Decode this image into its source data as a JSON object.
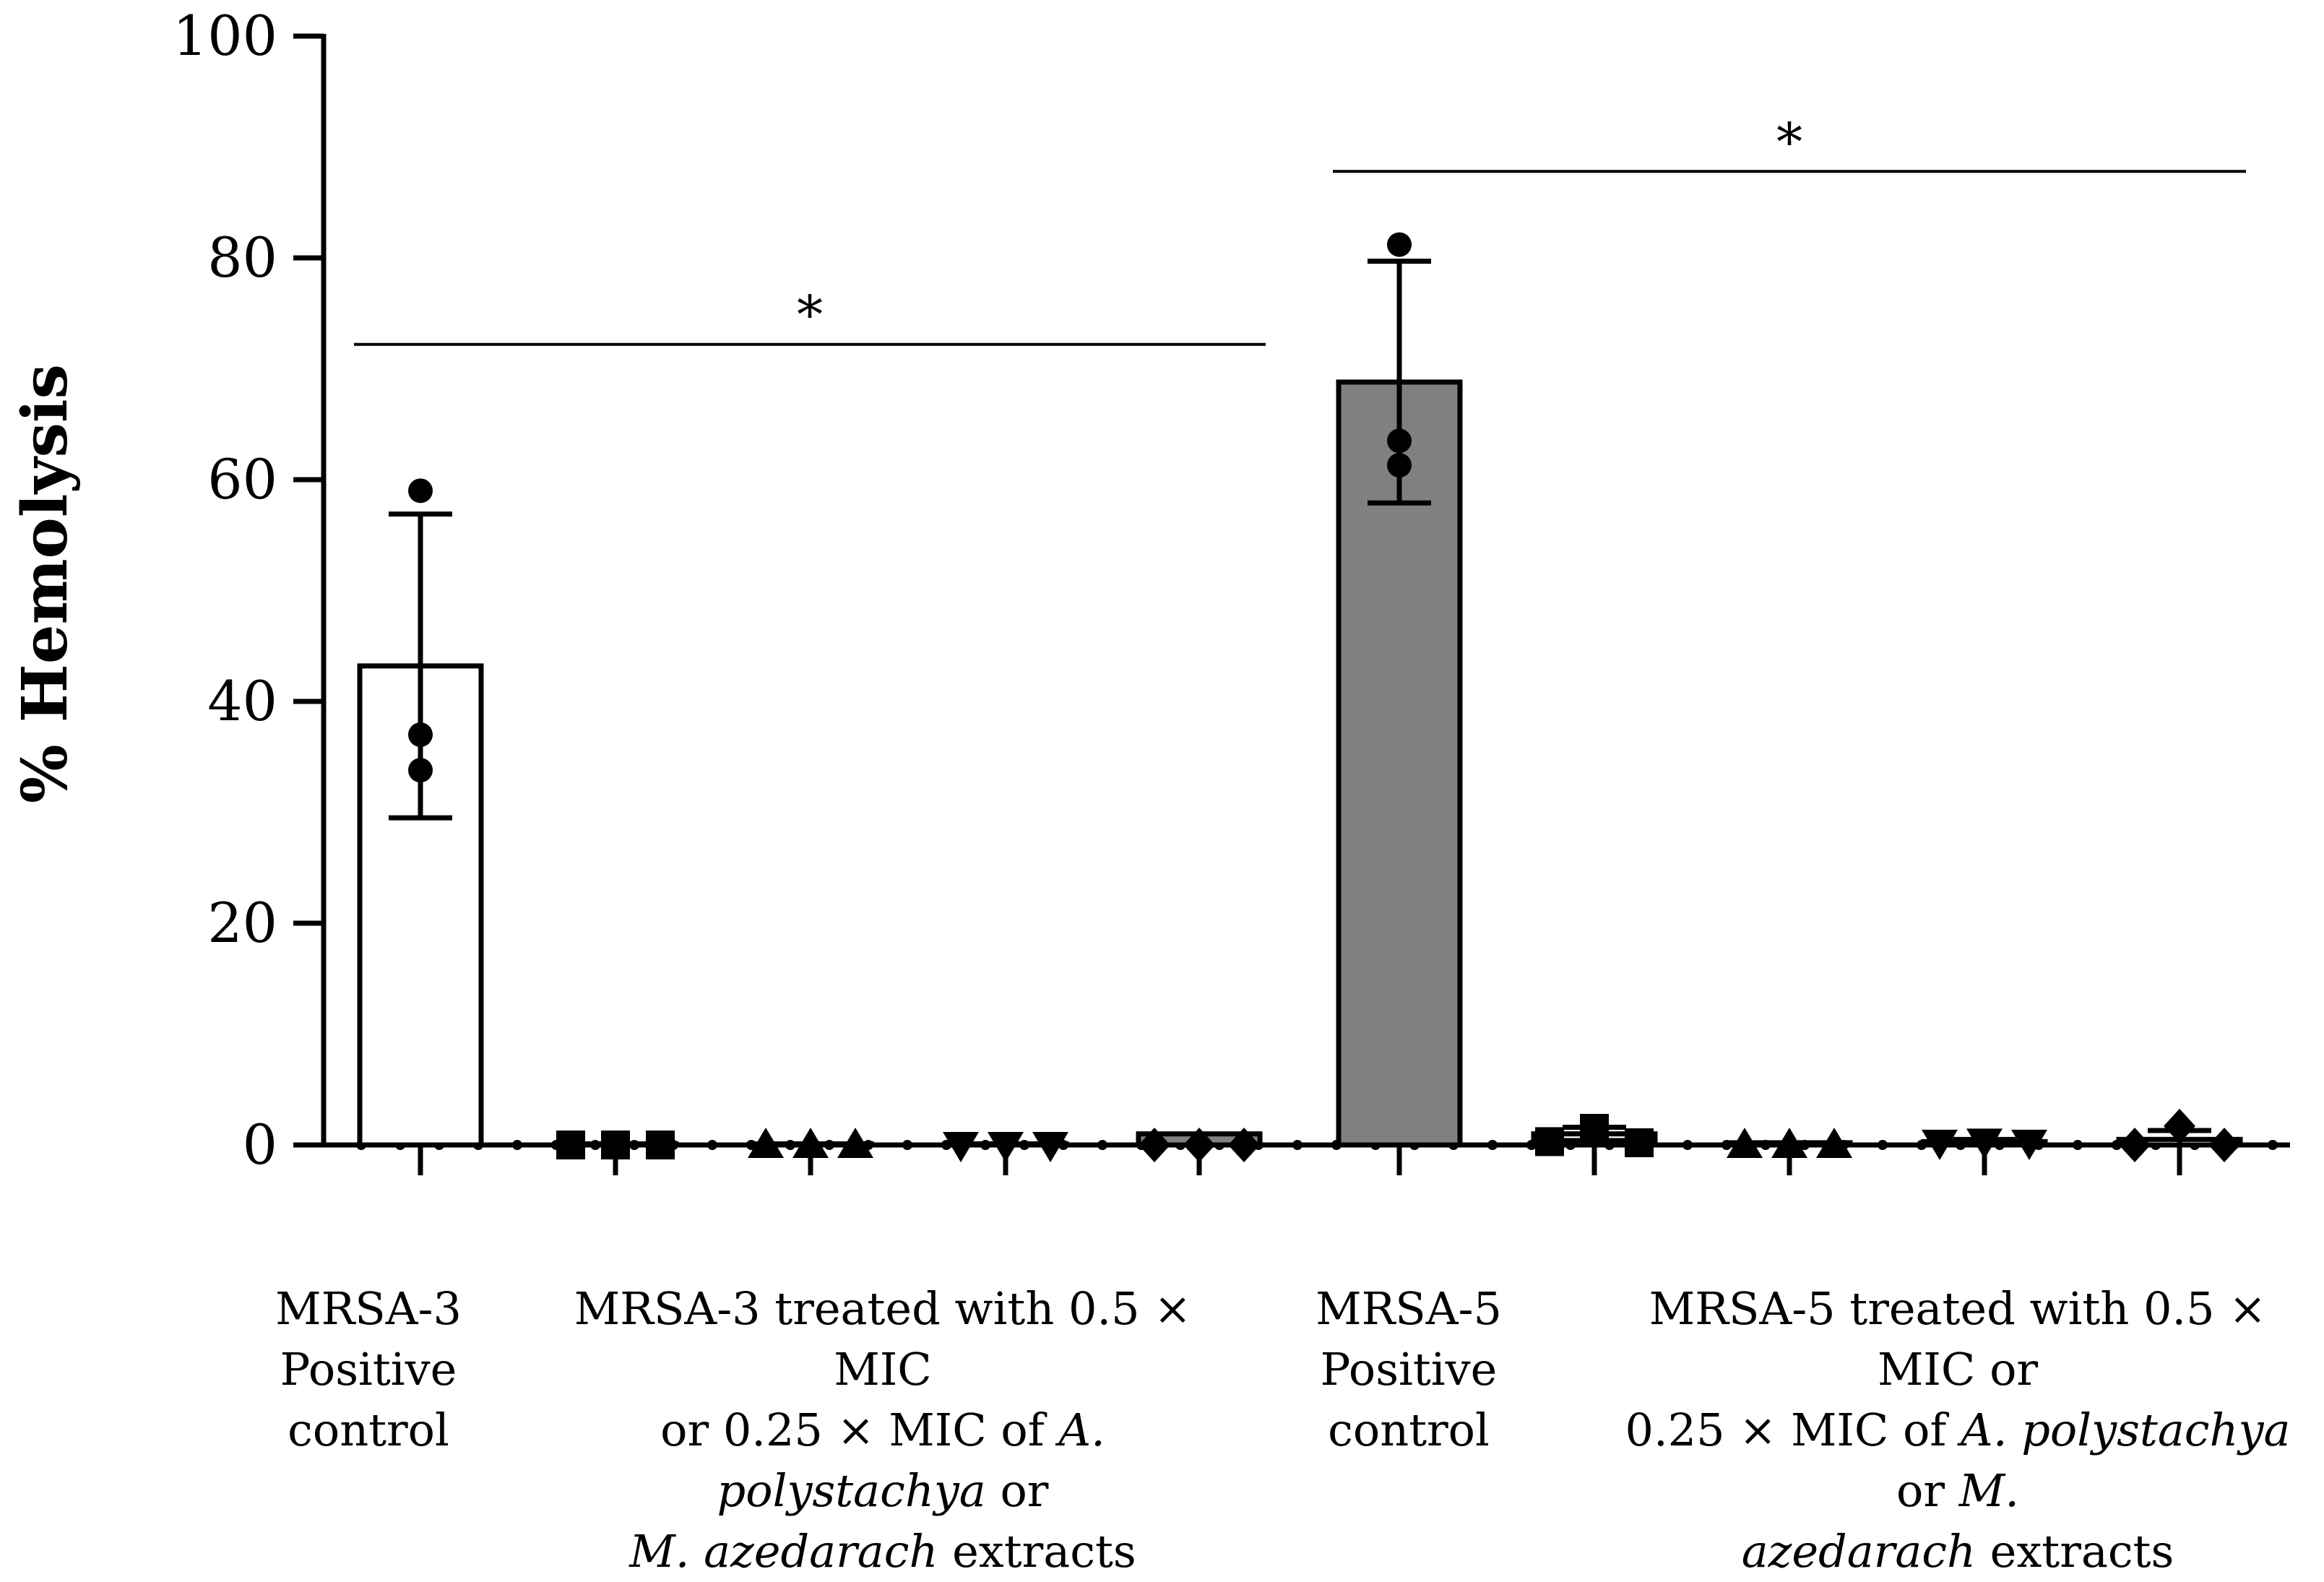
{
  "chart_data": {
    "type": "bar",
    "ylabel": "% Hemolysis",
    "ylim": [
      0,
      100
    ],
    "yticks": [
      "0",
      "20",
      "40",
      "60",
      "80",
      "100"
    ],
    "groups": [
      {
        "label": "MRSA-3 Positive control",
        "label_lines": [
          [
            {
              "t": "MRSA-3"
            }
          ],
          [
            {
              "t": "Positive"
            }
          ],
          [
            {
              "t": "control"
            }
          ]
        ],
        "bars": [
          {
            "mean": 43.2,
            "sd": 13.7,
            "fill": "#ffffff",
            "marker": "circle",
            "points": [
              59.0,
              37.0,
              33.8
            ]
          }
        ]
      },
      {
        "label": "MRSA-3 treated with 0.5 × MIC or 0.25 × MIC of A. polystachya or M. azedarach extracts",
        "label_lines": [
          [
            {
              "t": "MRSA-3 treated with 0.5 × MIC"
            }
          ],
          [
            {
              "t": "or 0.25 × MIC of "
            },
            {
              "t": "A. polystachya",
              "i": true
            },
            {
              "t": " or"
            }
          ],
          [
            {
              "t": "M. azedarach",
              "i": true
            },
            {
              "t": " extracts"
            }
          ]
        ],
        "bars": [
          {
            "mean": 0.1,
            "sd": 0.0,
            "fill": "#ffffff",
            "marker": "square",
            "points": [
              0.0,
              0.0,
              0.0
            ]
          },
          {
            "mean": 0.1,
            "sd": 0.0,
            "fill": "#ffffff",
            "marker": "triangle-up",
            "points": [
              0.0,
              0.0,
              0.0
            ]
          },
          {
            "mean": 0.1,
            "sd": 0.0,
            "fill": "#ffffff",
            "marker": "triangle-down",
            "points": [
              0.0,
              0.0,
              0.0
            ]
          },
          {
            "mean": 1.0,
            "sd": 0.0,
            "fill": "#808080",
            "marker": "diamond",
            "points": [
              0.0,
              0.0,
              0.0
            ]
          }
        ]
      },
      {
        "label": "MRSA-5 Positive control",
        "label_lines": [
          [
            {
              "t": "MRSA-5"
            }
          ],
          [
            {
              "t": "Positive"
            }
          ],
          [
            {
              "t": "control"
            }
          ]
        ],
        "bars": [
          {
            "mean": 68.8,
            "sd": 10.9,
            "fill": "#808080",
            "marker": "circle",
            "points": [
              81.2,
              63.5,
              61.3
            ]
          }
        ]
      },
      {
        "label": "MRSA-5 treated with 0.5 × MIC or 0.25 × MIC of A. polystachya or M. azedarach extracts",
        "label_lines": [
          [
            {
              "t": "MRSA-5 treated with 0.5 × MIC or"
            }
          ],
          [
            {
              "t": "0.25 × MIC of "
            },
            {
              "t": "A. polystachya",
              "i": true
            },
            {
              "t": " or "
            },
            {
              "t": "M.",
              "i": true
            }
          ],
          [
            {
              "t": "azedarach",
              "i": true
            },
            {
              "t": " extracts"
            }
          ]
        ],
        "bars": [
          {
            "mean": 1.0,
            "sd": 0.6,
            "fill": "#ffffff",
            "marker": "square",
            "points": [
              0.3,
              1.5,
              0.2
            ]
          },
          {
            "mean": 0.2,
            "sd": 0.0,
            "fill": "#ffffff",
            "marker": "triangle-up",
            "points": [
              0.0,
              0.0,
              0.0
            ]
          },
          {
            "mean": 0.3,
            "sd": 0.2,
            "fill": "#ffffff",
            "marker": "triangle-down",
            "points": [
              0.2,
              0.3,
              0.2
            ]
          },
          {
            "mean": 0.5,
            "sd": 0.8,
            "fill": "#ffffff",
            "marker": "diamond",
            "points": [
              0.0,
              1.7,
              0.0
            ]
          }
        ]
      }
    ],
    "significance": [
      {
        "label": "*",
        "y": 72.2,
        "from_bar": 0,
        "to_bar": 4
      },
      {
        "label": "*",
        "y": 87.8,
        "from_bar": 5,
        "to_bar": 9
      }
    ],
    "colors": {
      "axis": "#000000",
      "control_fill_mrsa3": "#ffffff",
      "control_fill_mrsa5": "#808080"
    }
  }
}
